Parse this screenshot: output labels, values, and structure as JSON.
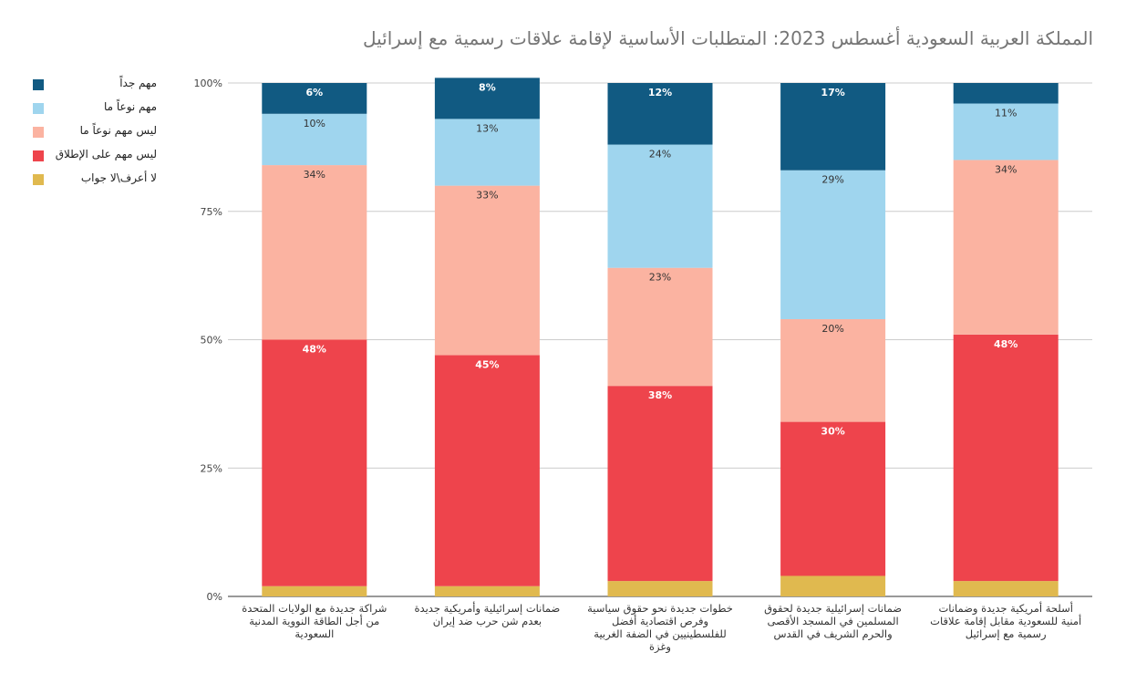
{
  "chart_data": {
    "type": "stacked-bar",
    "title": "المملكة العربية السعودية أغسطس 2023: المتطلبات الأساسية لإقامة علاقات رسمية مع إسرائيل",
    "ylim": [
      0,
      100
    ],
    "y_ticks": [
      "0%",
      "25%",
      "50%",
      "75%",
      "100%"
    ],
    "y_tick_values": [
      0,
      25,
      50,
      75,
      100
    ],
    "grid": true,
    "legend_position": "left",
    "categories": [
      [
        "شراكة جديدة مع الولايات المتحدة",
        "من أجل الطاقة النووية المدنية",
        "السعودية"
      ],
      [
        "ضمانات إسرائيلية وأمريكية جديدة",
        "بعدم شن حرب ضد إيران"
      ],
      [
        "خطوات جديدة نحو حقوق سياسية",
        "وفرص اقتصادية أفضل",
        "للفلسطينيين في الضفة الغربية",
        "وغزة"
      ],
      [
        "ضمانات إسرائيلية جديدة لحقوق",
        "المسلمين في المسجد الأقصى",
        "والحرم الشريف في القدس"
      ],
      [
        "أسلحة أمريكية جديدة وضمانات",
        "أمنية للسعودية مقابل إقامة علاقات",
        "رسمية مع إسرائيل"
      ]
    ],
    "series": [
      {
        "name": "لا أعرف\\لا جواب",
        "color": "#e0b94f",
        "values": [
          2,
          2,
          3,
          4,
          3
        ],
        "labels": [
          "",
          "",
          "",
          "",
          ""
        ]
      },
      {
        "name": "ليس مهم على الإطلاق",
        "color": "#ee444c",
        "values": [
          48,
          45,
          38,
          30,
          48
        ],
        "labels": [
          "48%",
          "45%",
          "38%",
          "30%",
          "48%"
        ]
      },
      {
        "name": "ليس مهم نوعاً ما",
        "color": "#fbb3a1",
        "values": [
          34,
          33,
          23,
          20,
          34
        ],
        "labels": [
          "34%",
          "33%",
          "23%",
          "20%",
          "34%"
        ]
      },
      {
        "name": "مهم نوعاً ما",
        "color": "#9fd5ee",
        "values": [
          10,
          13,
          24,
          29,
          11
        ],
        "labels": [
          "10%",
          "13%",
          "24%",
          "29%",
          "11%"
        ]
      },
      {
        "name": "مهم جداً",
        "color": "#115a82",
        "values": [
          6,
          8,
          12,
          17,
          4
        ],
        "labels": [
          "6%",
          "8%",
          "12%",
          "17%",
          ""
        ]
      }
    ]
  }
}
